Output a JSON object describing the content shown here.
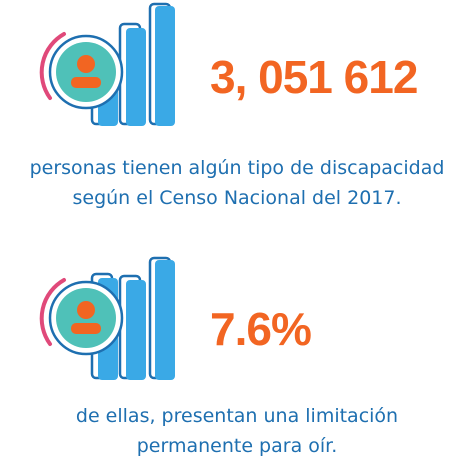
{
  "items": [
    {
      "value": "3, 051 612",
      "caption_line1": "personas tienen algún tipo de discapacidad",
      "caption_line2": "según el Censo Nacional del 2017.",
      "icon": "person-icon"
    },
    {
      "value": "7.6%",
      "caption_line1": "de ellas, presentan una limitación",
      "caption_line2": "permanente para oír.",
      "icon": "person-icon"
    }
  ],
  "colors": {
    "accent": "#f26522",
    "text": "#1e6fb0",
    "bar_fill": "#3aa9e6",
    "bar_outline": "#1e6fb0",
    "circle": "#4fc1b8",
    "arc": "#e0497a"
  }
}
